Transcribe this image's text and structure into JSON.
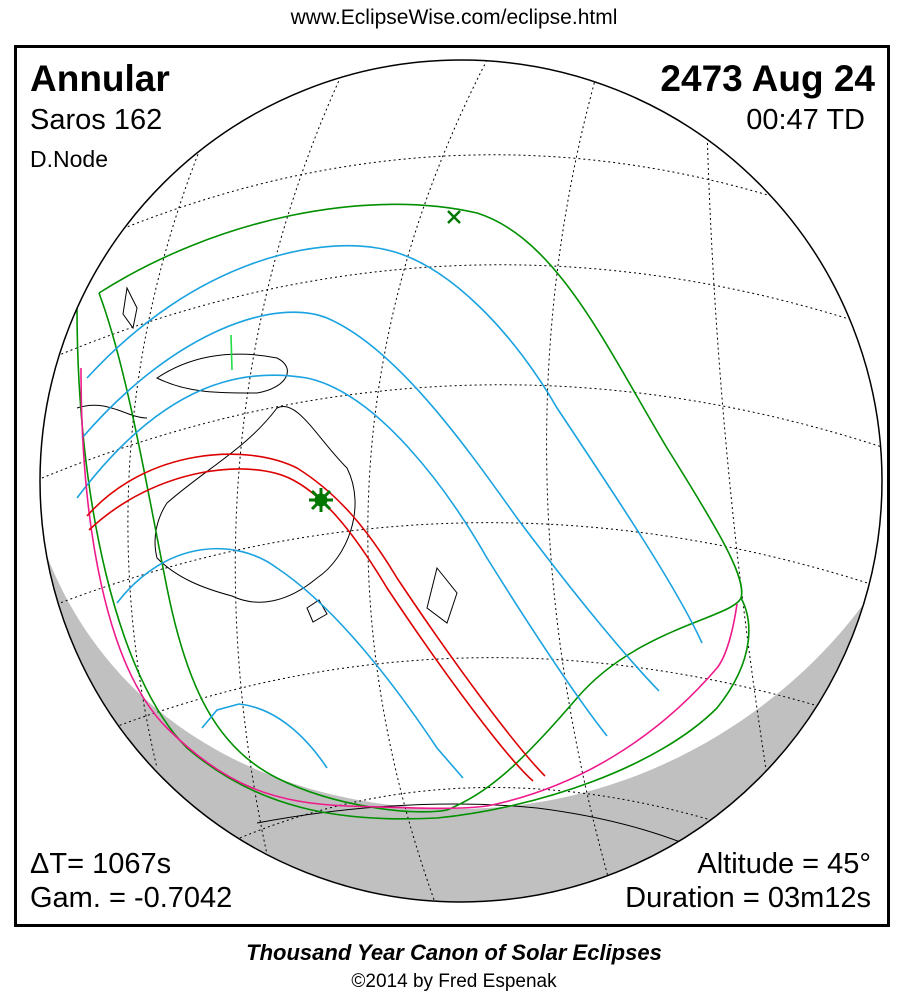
{
  "header": {
    "url": "www.EclipseWise.com/eclipse.html"
  },
  "eclipse": {
    "type": "Annular",
    "date": "2473 Aug 24",
    "saros": "Saros 162",
    "time": "00:47 TD",
    "node": "D.Node",
    "delta_t": "ΔT=   1067s",
    "gamma": "Gam. = -0.7042",
    "altitude": "Altitude = 45°",
    "duration": "Duration = 03m12s"
  },
  "map": {
    "colors": {
      "globe_outline": "#000000",
      "night_shading": "#c0c0c0",
      "graticule": "#000000",
      "coastlines": "#000000",
      "central_path": "#dd0000",
      "penumbral_limits": "#009000",
      "partial_contours": "#1aa3e0",
      "sunrise_sunset": "#ee1a8c",
      "land_fill_green": "#22dd44"
    },
    "markers": [
      {
        "name": "greatest-eclipse-star",
        "color": "#007700"
      },
      {
        "name": "subsolar-cross",
        "color": "#007700"
      }
    ]
  },
  "footer": {
    "title": "Thousand Year Canon of Solar Eclipses",
    "copyright": "©2014 by Fred Espenak"
  }
}
